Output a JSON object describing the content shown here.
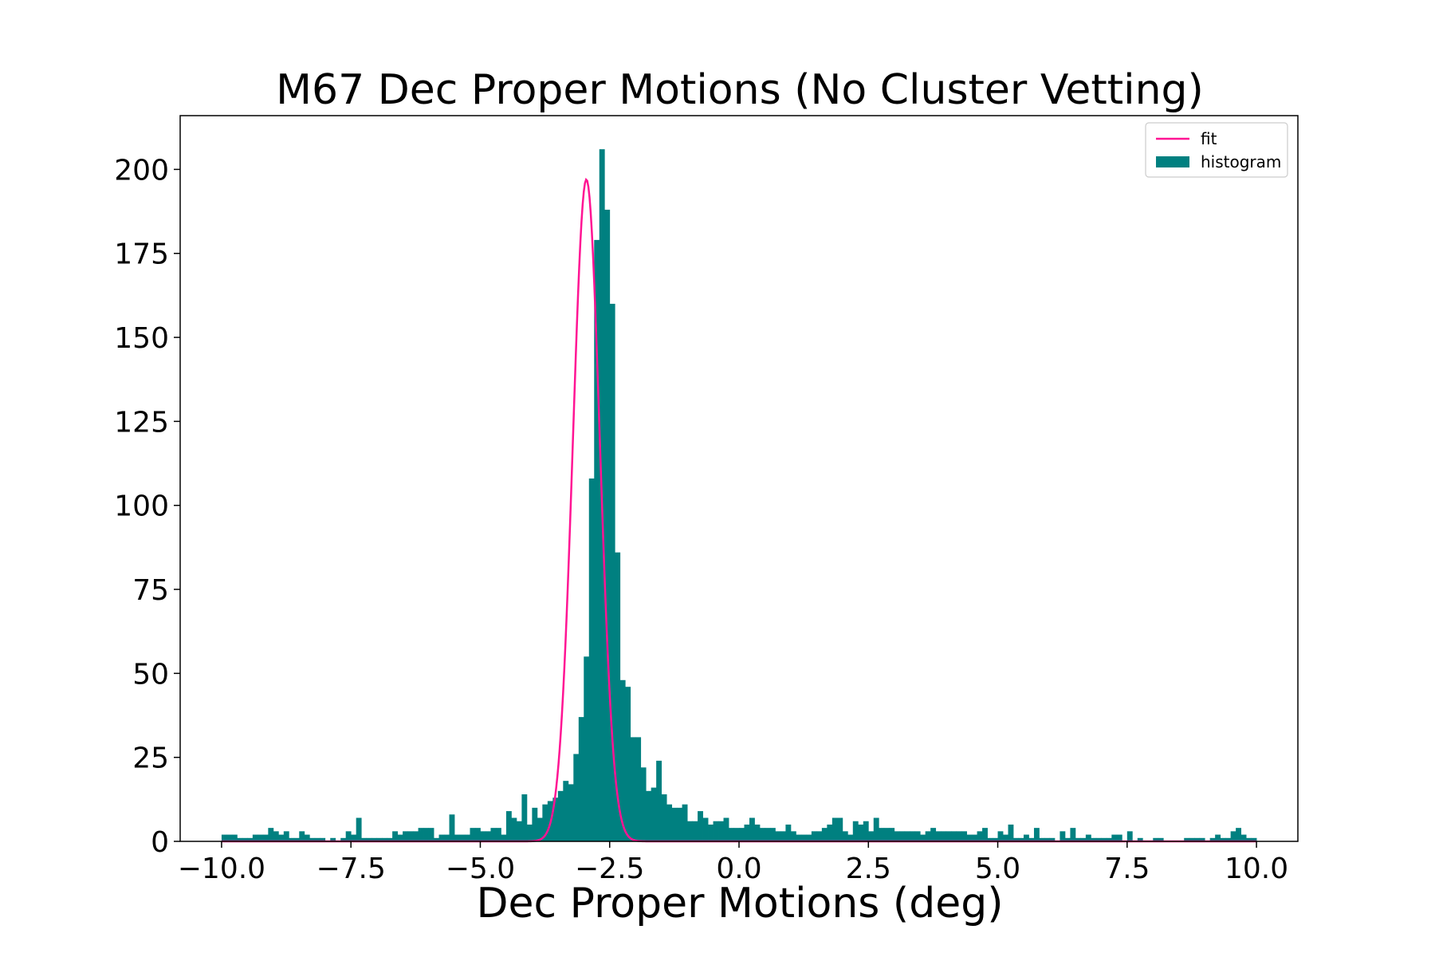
{
  "chart_data": {
    "type": "bar",
    "title": "M67 Dec Proper Motions (No Cluster Vetting)",
    "xlabel": "Dec Proper Motions (deg)",
    "ylabel": "",
    "xlim": [
      -10.8,
      10.8
    ],
    "ylim": [
      0,
      216
    ],
    "x_ticks": [
      -10.0,
      -7.5,
      -5.0,
      -2.5,
      0.0,
      2.5,
      5.0,
      7.5,
      10.0
    ],
    "x_tick_labels": [
      "−10.0",
      "−7.5",
      "−5.0",
      "−2.5",
      "0.0",
      "2.5",
      "5.0",
      "7.5",
      "10.0"
    ],
    "y_ticks": [
      0,
      25,
      50,
      75,
      100,
      125,
      150,
      175,
      200
    ],
    "y_tick_labels": [
      "0",
      "25",
      "50",
      "75",
      "100",
      "125",
      "150",
      "175",
      "200"
    ],
    "legend_position": "top-right",
    "bar_color": "#008080",
    "line_color": "#ff1493",
    "grid": false,
    "bin_start": -10.0,
    "bin_width": 0.1,
    "series": [
      {
        "name": "histogram",
        "type": "histogram",
        "values": [
          2,
          2,
          2,
          1,
          1,
          1,
          2,
          2,
          2,
          4,
          3,
          2,
          3,
          1,
          1,
          3,
          2,
          1,
          1,
          1,
          0,
          1,
          0,
          1,
          3,
          2,
          7,
          1,
          1,
          1,
          1,
          1,
          1,
          3,
          2,
          3,
          3,
          3,
          4,
          4,
          4,
          1,
          2,
          2,
          8,
          2,
          2,
          2,
          4,
          4,
          3,
          3,
          4,
          4,
          2,
          9,
          7,
          6,
          14,
          5,
          10,
          7,
          11,
          12,
          13,
          15,
          18,
          17,
          26,
          37,
          55,
          108,
          179,
          206,
          188,
          160,
          86,
          48,
          46,
          31,
          31,
          22,
          15,
          16,
          24,
          14,
          11,
          10,
          10,
          11,
          6,
          6,
          9,
          7,
          5,
          6,
          6,
          7,
          4,
          4,
          4,
          5,
          7,
          5,
          4,
          4,
          4,
          3,
          3,
          5,
          3,
          2,
          2,
          2,
          3,
          3,
          4,
          5,
          7,
          7,
          3,
          2,
          6,
          5,
          6,
          3,
          7,
          4,
          4,
          4,
          3,
          3,
          3,
          3,
          3,
          2,
          3,
          4,
          3,
          3,
          3,
          3,
          3,
          3,
          2,
          2,
          3,
          4,
          1,
          1,
          3,
          2,
          5,
          1,
          1,
          2,
          1,
          4,
          1,
          1,
          1,
          0,
          3,
          1,
          4,
          1,
          1,
          2,
          1,
          1,
          1,
          1,
          2,
          2,
          0,
          3,
          0,
          1,
          0,
          0,
          1,
          1,
          0,
          0,
          0,
          0,
          1,
          1,
          1,
          1,
          0,
          1,
          2,
          1,
          1,
          3,
          4,
          2,
          1,
          1
        ],
        "extra_values_note_hidden": null
      },
      {
        "name": "fit",
        "type": "gaussian",
        "amplitude": 197,
        "mean": -2.95,
        "sigma": 0.26
      }
    ]
  }
}
